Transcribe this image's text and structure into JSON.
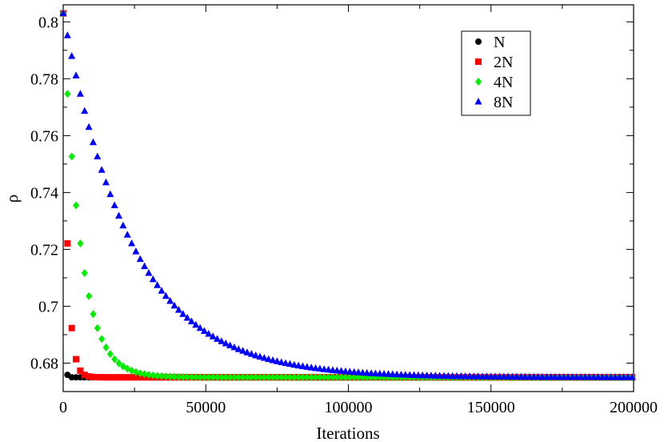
{
  "chart_data": {
    "type": "scatter",
    "xlabel": "Iterations",
    "ylabel": "ρ",
    "xlim": [
      0,
      200000
    ],
    "ylim": [
      0.67,
      0.806
    ],
    "x_ticks": [
      0,
      50000,
      100000,
      150000,
      200000
    ],
    "x_tick_labels": [
      "0",
      "50000",
      "100000",
      "150000",
      "200000"
    ],
    "y_ticks": [
      0.68,
      0.7,
      0.72,
      0.74,
      0.76,
      0.78,
      0.8
    ],
    "y_tick_labels": [
      "0.68",
      "0.7",
      "0.72",
      "0.74",
      "0.76",
      "0.78",
      "0.8"
    ],
    "grid": false,
    "legend_position": "top-right",
    "series": [
      {
        "name": "N",
        "marker": "circle",
        "color": "#000000",
        "initial": 0.803,
        "final": 0.675,
        "decay_scale": 300,
        "step": 1500,
        "x_max": 200000
      },
      {
        "name": "2N",
        "marker": "square",
        "color": "#ff0000",
        "initial": 0.803,
        "final": 0.675,
        "decay_scale": 1500,
        "step": 1500,
        "x_max": 200000
      },
      {
        "name": "4N",
        "marker": "diamond",
        "color": "#00ee00",
        "initial": 0.803,
        "final": 0.675,
        "decay_scale": 6000,
        "step": 1500,
        "x_max": 200000
      },
      {
        "name": "8N",
        "marker": "triangle",
        "color": "#0000ff",
        "initial": 0.803,
        "final": 0.675,
        "decay_scale": 24000,
        "step": 1500,
        "x_max": 200000
      }
    ]
  }
}
